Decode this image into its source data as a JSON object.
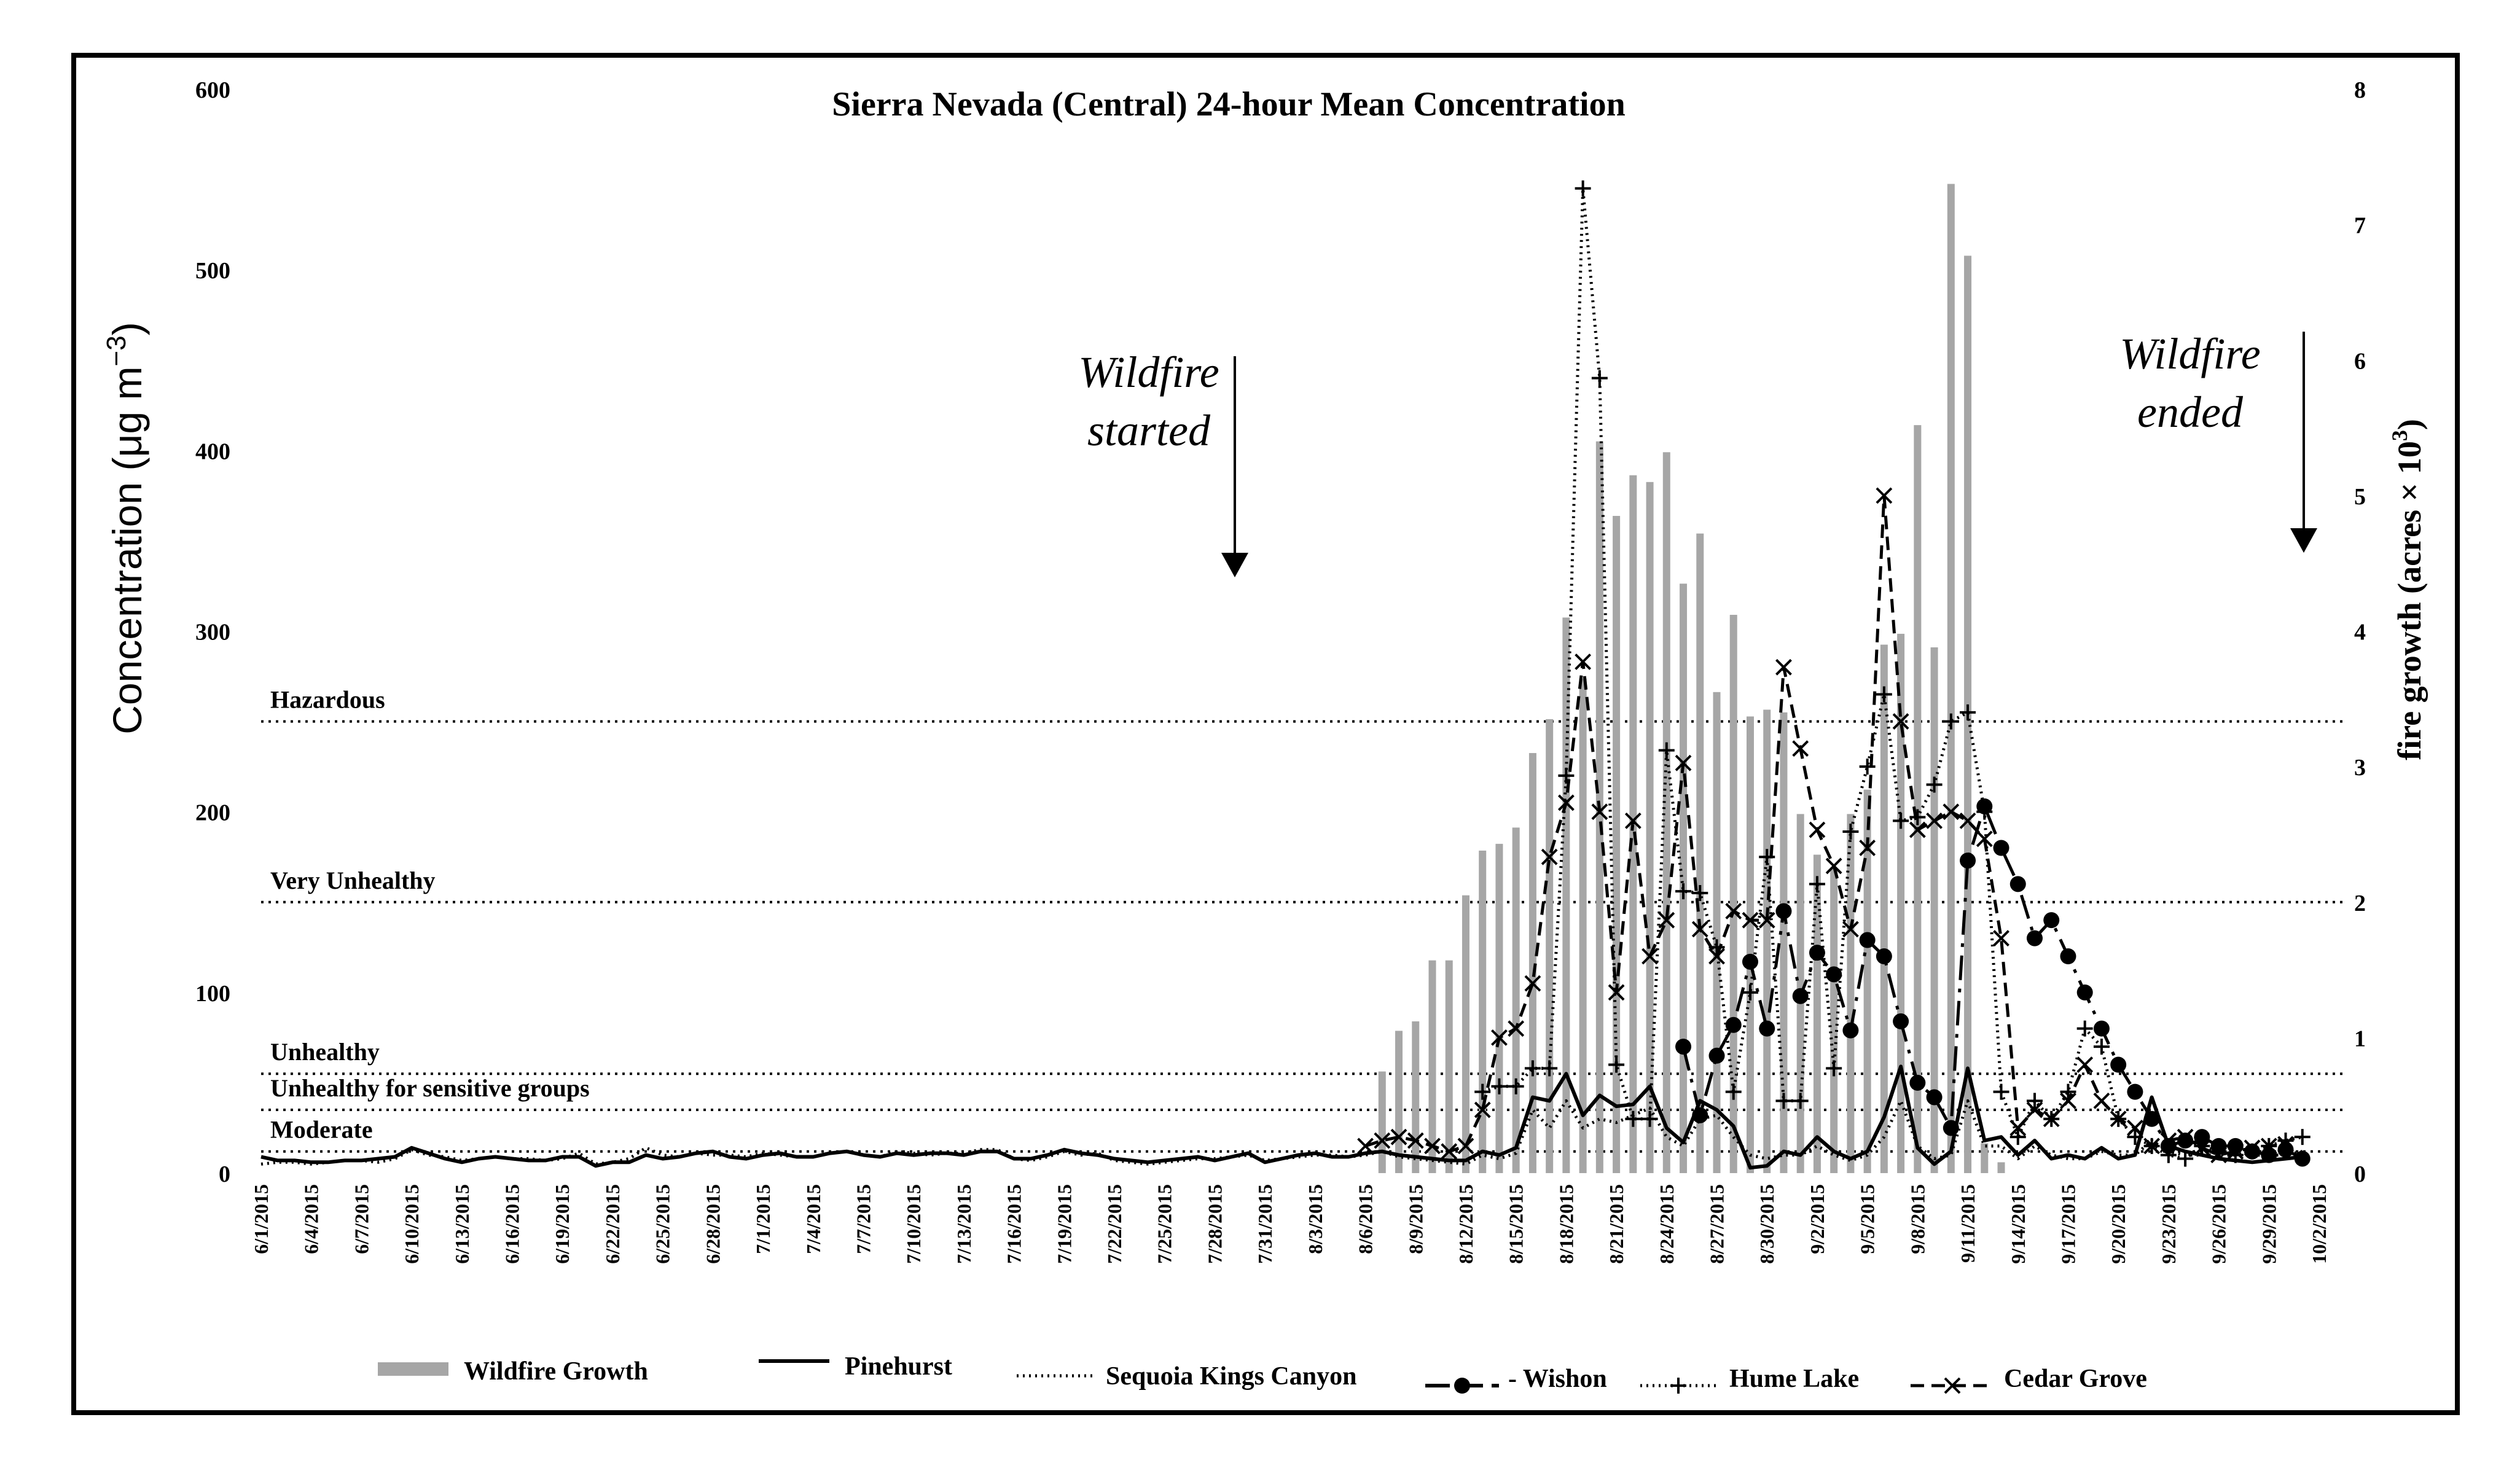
{
  "chart_data": {
    "type": "line",
    "title": "Sierra Nevada (Central) 24-hour Mean Concentration",
    "ylabel": "Concentration (μg m",
    "ylabel_sup": "−3",
    "ylabel_close": ")",
    "y2label": "fire growth (acres × 10",
    "y2label_sup": "3",
    "y2label_close": ")",
    "ylim": [
      0,
      600
    ],
    "y2lim": [
      0,
      8
    ],
    "yticks": [
      "0",
      "100",
      "200",
      "300",
      "400",
      "500",
      "600"
    ],
    "y2ticks": [
      "0",
      "1",
      "2",
      "3",
      "4",
      "5",
      "6",
      "7",
      "8"
    ],
    "xtick_labels": [
      "6/1/2015",
      "6/4/2015",
      "6/7/2015",
      "6/10/2015",
      "6/13/2015",
      "6/16/2015",
      "6/19/2015",
      "6/22/2015",
      "6/25/2015",
      "6/28/2015",
      "7/1/2015",
      "7/4/2015",
      "7/7/2015",
      "7/10/2015",
      "7/13/2015",
      "7/16/2015",
      "7/19/2015",
      "7/22/2015",
      "7/25/2015",
      "7/28/2015",
      "7/31/2015",
      "8/3/2015",
      "8/6/2015",
      "8/9/2015",
      "8/12/2015",
      "8/15/2015",
      "8/18/2015",
      "8/21/2015",
      "8/24/2015",
      "8/27/2015",
      "8/30/2015",
      "9/2/2015",
      "9/5/2015",
      "9/8/2015",
      "9/11/2015",
      "9/14/2015",
      "9/17/2015",
      "9/20/2015",
      "9/23/2015",
      "9/26/2015",
      "9/29/2015",
      "10/2/2015"
    ],
    "x_start": "6/1/2015",
    "x_end": "10/2/2015",
    "thresholds": [
      {
        "label": "Hazardous",
        "value": 250
      },
      {
        "label": "Very Unhealthy",
        "value": 150
      },
      {
        "label": "Unhealthy",
        "value": 55
      },
      {
        "label": "Unhealthy for sensitive groups",
        "value": 35
      },
      {
        "label": "Moderate",
        "value": 12
      }
    ],
    "annotations": [
      {
        "text_lines": [
          "Wildfire",
          "started"
        ],
        "day": 58
      },
      {
        "text_lines": [
          "Wildfire",
          "ended"
        ],
        "day": 121
      }
    ],
    "wildfire_growth": {
      "name": "Wildfire Growth",
      "axis": "right",
      "days": [
        67,
        68,
        69,
        70,
        71,
        72,
        73,
        74,
        75,
        76,
        77,
        78,
        79,
        80,
        81,
        82,
        83,
        84,
        85,
        86,
        87,
        88,
        89,
        90,
        91,
        92,
        93,
        94,
        95,
        96,
        97,
        98,
        99,
        100,
        101,
        102,
        103,
        104
      ],
      "values": [
        0.75,
        1.05,
        1.12,
        1.57,
        1.57,
        2.05,
        2.38,
        2.43,
        2.55,
        3.1,
        3.35,
        4.1,
        3.65,
        5.4,
        4.85,
        5.15,
        5.1,
        5.32,
        4.35,
        4.72,
        3.55,
        4.12,
        3.37,
        3.42,
        3.4,
        2.65,
        2.35,
        2.25,
        2.65,
        2.83,
        3.9,
        3.98,
        5.52,
        3.88,
        7.3,
        6.77,
        0.22,
        0.08
      ]
    },
    "series": [
      {
        "name": "Pinehurst",
        "style": "solid",
        "values": [
          9,
          7,
          7,
          6,
          6,
          7,
          7,
          8,
          9,
          14,
          11,
          8,
          6,
          8,
          9,
          8,
          7,
          7,
          9,
          9,
          4,
          6,
          6,
          10,
          8,
          9,
          11,
          12,
          9,
          8,
          10,
          11,
          9,
          9,
          11,
          12,
          10,
          9,
          11,
          10,
          11,
          11,
          10,
          12,
          12,
          8,
          8,
          10,
          13,
          11,
          10,
          8,
          7,
          6,
          7,
          8,
          9,
          7,
          9,
          11,
          6,
          8,
          10,
          11,
          9,
          9,
          11,
          12,
          10,
          9,
          8,
          7,
          7,
          12,
          10,
          14,
          42,
          40,
          55,
          32,
          43,
          37,
          38,
          48,
          25,
          17,
          40,
          35,
          26,
          3,
          4,
          12,
          10,
          20,
          12,
          8,
          12,
          31,
          59,
          14,
          5,
          12,
          58,
          18,
          20,
          10,
          18,
          8,
          10,
          8,
          14,
          8,
          10,
          42,
          15,
          12,
          10,
          8,
          7,
          6,
          7,
          8,
          9
        ]
      },
      {
        "name": "Sequoia Kings Canyon",
        "style": "dotted",
        "values": [
          5,
          6,
          6,
          5,
          6,
          7,
          7,
          6,
          8,
          13,
          10,
          9,
          7,
          8,
          9,
          8,
          8,
          7,
          8,
          11,
          5,
          6,
          8,
          14,
          10,
          9,
          11,
          10,
          10,
          9,
          11,
          10,
          9,
          9,
          11,
          12,
          10,
          9,
          12,
          11,
          10,
          11,
          11,
          13,
          13,
          8,
          7,
          9,
          12,
          10,
          11,
          7,
          6,
          5,
          6,
          7,
          8,
          8,
          9,
          10,
          7,
          8,
          9,
          10,
          10,
          9,
          10,
          12,
          9,
          8,
          7,
          6,
          5,
          10,
          8,
          11,
          35,
          25,
          40,
          25,
          30,
          28,
          32,
          36,
          20,
          15,
          30,
          32,
          20,
          10,
          8,
          10,
          10,
          15,
          10,
          7,
          10,
          20,
          40,
          15,
          8,
          10,
          40,
          15,
          15,
          8,
          15,
          10,
          8,
          8,
          12,
          10,
          10,
          18,
          12,
          10,
          10,
          10,
          10,
          10,
          10,
          10,
          12
        ]
      },
      {
        "name": "Wishon",
        "style": "dash-dot",
        "marker": "dot",
        "days": [
          85,
          86,
          87,
          88,
          89,
          90,
          91,
          92,
          93,
          94,
          95,
          96,
          97,
          98,
          99,
          100,
          101,
          102,
          103,
          104,
          105,
          106,
          107,
          108,
          109,
          110,
          111,
          112,
          113,
          114,
          115,
          116,
          117,
          118,
          119,
          120,
          121,
          122
        ],
        "values": [
          70,
          32,
          65,
          82,
          117,
          80,
          145,
          98,
          122,
          110,
          79,
          129,
          120,
          84,
          50,
          42,
          25,
          173,
          203,
          180,
          160,
          130,
          140,
          120,
          100,
          80,
          60,
          45,
          30,
          15,
          18,
          20,
          15,
          15,
          12,
          10,
          13,
          8
        ]
      },
      {
        "name": "Hume Lake",
        "style": "dotted",
        "marker": "plus",
        "days": [
          73,
          74,
          75,
          76,
          77,
          78,
          79,
          80,
          81,
          82,
          83,
          84,
          85,
          86,
          87,
          88,
          89,
          90,
          91,
          92,
          93,
          94,
          95,
          96,
          97,
          98,
          99,
          100,
          101,
          102,
          103,
          104,
          105,
          106,
          107,
          108,
          109,
          110,
          111,
          112,
          113,
          114,
          115,
          116,
          117,
          118,
          119,
          120,
          121,
          122
        ],
        "values": [
          45,
          48,
          48,
          58,
          58,
          220,
          545,
          440,
          60,
          30,
          30,
          234,
          156,
          155,
          125,
          45,
          100,
          175,
          40,
          40,
          160,
          58,
          189,
          225,
          265,
          195,
          197,
          215,
          250,
          255,
          200,
          45,
          20,
          40,
          30,
          45,
          80,
          70,
          30,
          20,
          15,
          10,
          8,
          15,
          12,
          10,
          12,
          15,
          18,
          20
        ]
      },
      {
        "name": "Cedar Grove",
        "style": "dashed",
        "marker": "x",
        "days": [
          66,
          67,
          68,
          69,
          70,
          71,
          72,
          73,
          74,
          75,
          76,
          77,
          78,
          79,
          80,
          81,
          82,
          83,
          84,
          85,
          86,
          87,
          88,
          89,
          90,
          91,
          92,
          93,
          94,
          95,
          96,
          97,
          98,
          99,
          100,
          101,
          102,
          103,
          104,
          105,
          106,
          107,
          108,
          109,
          110,
          111,
          112,
          113,
          114,
          115,
          116,
          117,
          118,
          119,
          120,
          121
        ],
        "values": [
          15,
          18,
          20,
          18,
          15,
          12,
          15,
          35,
          75,
          80,
          105,
          175,
          205,
          283,
          200,
          100,
          195,
          120,
          140,
          227,
          135,
          120,
          145,
          140,
          140,
          280,
          235,
          190,
          170,
          135,
          180,
          375,
          250,
          190,
          195,
          200,
          195,
          185,
          130,
          25,
          35,
          30,
          40,
          60,
          40,
          30,
          25,
          15,
          18,
          20,
          14,
          10,
          12,
          14,
          15,
          16
        ]
      }
    ],
    "legend": [
      "Wildfire Growth",
      "Pinehurst",
      "Sequoia Kings Canyon",
      "- Wishon",
      "Hume Lake",
      "Cedar Grove"
    ]
  }
}
